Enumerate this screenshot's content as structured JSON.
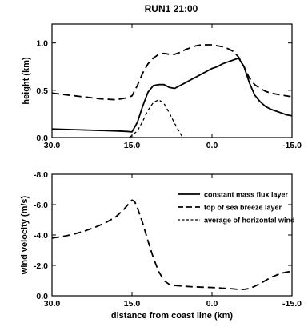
{
  "chart_data": [
    {
      "type": "line",
      "title": "RUN1 21:00",
      "xlabel": "",
      "ylabel": "height (km)",
      "xlim": [
        30.0,
        -15.0
      ],
      "ylim": [
        0.0,
        1.2
      ],
      "x_reversed": true,
      "x_ticks": [
        "30.0",
        "15.0",
        "0.0",
        "-15.0"
      ],
      "x_tick_values": [
        30,
        15,
        0,
        -15
      ],
      "y_ticks": [
        "0.0",
        "0.5",
        "1.0"
      ],
      "y_tick_values": [
        0,
        0.5,
        1.0
      ],
      "series": [
        {
          "style": "solid",
          "x": [
            30,
            27,
            24,
            21,
            18,
            16,
            15,
            14,
            13,
            12,
            11,
            10,
            9,
            8,
            7,
            6,
            5,
            4,
            3,
            2,
            1,
            0,
            -1,
            -2,
            -3,
            -4,
            -5,
            -6,
            -7,
            -8,
            -9,
            -10,
            -11,
            -12,
            -13,
            -14,
            -15
          ],
          "y": [
            0.09,
            0.085,
            0.08,
            0.075,
            0.07,
            0.065,
            0.06,
            0.16,
            0.33,
            0.48,
            0.55,
            0.56,
            0.56,
            0.53,
            0.52,
            0.55,
            0.58,
            0.61,
            0.64,
            0.67,
            0.7,
            0.73,
            0.75,
            0.78,
            0.8,
            0.82,
            0.84,
            0.75,
            0.58,
            0.45,
            0.38,
            0.33,
            0.3,
            0.28,
            0.26,
            0.24,
            0.23
          ]
        },
        {
          "style": "dashed",
          "x": [
            30,
            27,
            24,
            21,
            18,
            16,
            15,
            14,
            13,
            12,
            11,
            10,
            9,
            8,
            7,
            6,
            5,
            4,
            3,
            2,
            1,
            0,
            -1,
            -2,
            -3,
            -4,
            -5,
            -6,
            -7,
            -8,
            -9,
            -10,
            -11,
            -12,
            -13,
            -14,
            -15
          ],
          "y": [
            0.47,
            0.45,
            0.43,
            0.41,
            0.4,
            0.42,
            0.44,
            0.55,
            0.68,
            0.78,
            0.84,
            0.88,
            0.89,
            0.88,
            0.88,
            0.9,
            0.93,
            0.95,
            0.97,
            0.98,
            0.98,
            0.98,
            0.97,
            0.96,
            0.94,
            0.91,
            0.85,
            0.75,
            0.63,
            0.56,
            0.52,
            0.49,
            0.47,
            0.46,
            0.45,
            0.44,
            0.43
          ]
        },
        {
          "style": "dotted",
          "x": [
            15.5,
            14,
            13,
            12,
            11,
            10,
            9,
            8,
            7,
            6,
            5.5
          ],
          "y": [
            0.0,
            0.07,
            0.17,
            0.29,
            0.37,
            0.4,
            0.36,
            0.26,
            0.15,
            0.05,
            0.0
          ]
        }
      ]
    },
    {
      "type": "line",
      "title": "",
      "xlabel": "distance from coast line (km)",
      "ylabel": "wind velocity (m/s)",
      "xlim": [
        30.0,
        -15.0
      ],
      "ylim": [
        0.0,
        -8.0
      ],
      "x_reversed": true,
      "x_ticks": [
        "30.0",
        "15.0",
        "0.0",
        "-15.0"
      ],
      "x_tick_values": [
        30,
        15,
        0,
        -15
      ],
      "y_ticks": [
        "0.0",
        "-2.0",
        "-4.0",
        "-6.0",
        "-8.0"
      ],
      "y_tick_values": [
        0,
        -2,
        -4,
        -6,
        -8
      ],
      "legend": {
        "placement": "right",
        "entries": [
          {
            "label": "constant mass flux layer",
            "style": "solid"
          },
          {
            "label": "top of sea breeze layer",
            "style": "dashed"
          },
          {
            "label": "average of horizontal wind",
            "style": "dotted"
          }
        ]
      },
      "series": [
        {
          "style": "dashed",
          "x": [
            30,
            28,
            26,
            24,
            22,
            20,
            18,
            16.5,
            15.5,
            15,
            14.5,
            14,
            13,
            12,
            11,
            10,
            9,
            8,
            7,
            6,
            5,
            4,
            2,
            0,
            -2,
            -4,
            -5,
            -6,
            -7,
            -8,
            -9,
            -10,
            -11,
            -12,
            -13,
            -14,
            -15
          ],
          "y": [
            -3.8,
            -3.9,
            -4.05,
            -4.25,
            -4.5,
            -4.8,
            -5.2,
            -5.7,
            -6.1,
            -6.3,
            -6.2,
            -5.8,
            -4.8,
            -3.6,
            -2.5,
            -1.6,
            -1.0,
            -0.75,
            -0.68,
            -0.65,
            -0.62,
            -0.6,
            -0.57,
            -0.55,
            -0.5,
            -0.45,
            -0.42,
            -0.42,
            -0.48,
            -0.62,
            -0.8,
            -1.0,
            -1.2,
            -1.35,
            -1.48,
            -1.56,
            -1.62
          ]
        }
      ]
    }
  ]
}
